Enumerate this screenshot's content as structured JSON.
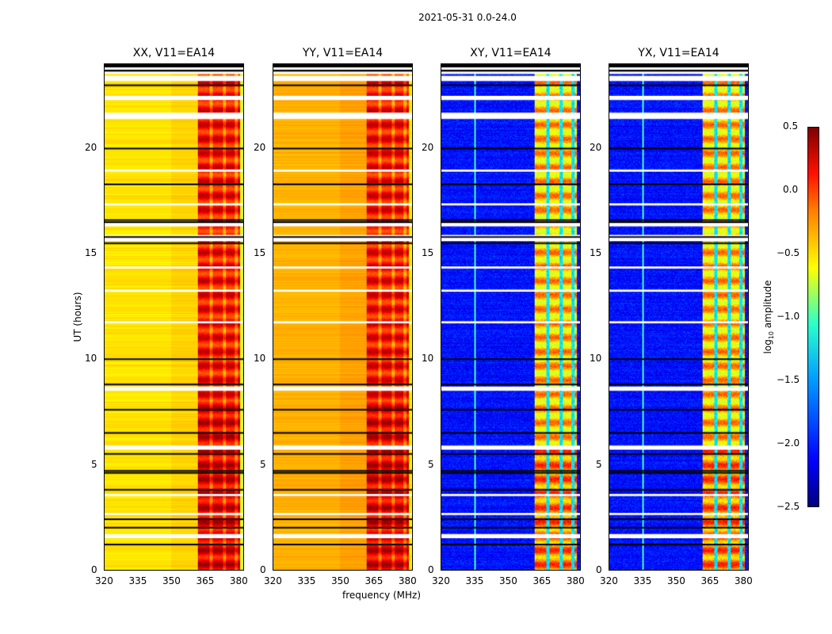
{
  "chart_data": {
    "type": "heatmap",
    "title": "2021-05-31 0.0-24.0",
    "xlabel": "frequency (MHz)",
    "ylabel": "UT (hours)",
    "xlim": [
      320,
      382.5
    ],
    "ylim": [
      0,
      24
    ],
    "xticks": [
      "320",
      "335",
      "350",
      "365",
      "380"
    ],
    "yticks": [
      "0",
      "5",
      "10",
      "15",
      "20"
    ],
    "panels": [
      {
        "title": "XX, V11=EA14",
        "kind": "parallel"
      },
      {
        "title": "YY, V11=EA14",
        "kind": "parallel"
      },
      {
        "title": "XY, V11=EA14",
        "kind": "cross"
      },
      {
        "title": "YX, V11=EA14",
        "kind": "cross"
      }
    ],
    "parallel_base_log_amp": -0.6,
    "parallel_band_log_amp": 0.1,
    "cross_base_log_amp": -2.3,
    "cross_band_log_amp": -0.5,
    "band_mhz": [
      362,
      381
    ],
    "band_gaps_mhz": [
      368,
      374,
      379
    ],
    "flagged_hours": [
      [
        23.2,
        23.45
      ],
      [
        22.3,
        22.5
      ],
      [
        21.4,
        21.7
      ],
      [
        18.9,
        19.0
      ],
      [
        17.3,
        17.4
      ],
      [
        16.3,
        16.5
      ],
      [
        15.6,
        15.9
      ],
      [
        14.3,
        14.4
      ],
      [
        13.2,
        13.3
      ],
      [
        11.7,
        11.8
      ],
      [
        8.5,
        8.7
      ],
      [
        5.7,
        5.9
      ],
      [
        3.5,
        3.6
      ],
      [
        2.6,
        2.7
      ],
      [
        1.5,
        1.7
      ]
    ],
    "black_line_hours": [
      24.0,
      23.8,
      23.6,
      23.0,
      20.0,
      18.3,
      16.6,
      16.5,
      15.8,
      15.5,
      10.0,
      8.8,
      7.6,
      6.5,
      5.5,
      4.7,
      4.6,
      3.8,
      2.4,
      2.0,
      1.2
    ],
    "colorbar": {
      "label": "log10 amplitude",
      "label_main": "log",
      "label_sub": "10",
      "label_rest": " amplitude",
      "ticks": [
        "0.5",
        "0.0",
        "−0.5",
        "−1.0",
        "−1.5",
        "−2.0",
        "−2.5"
      ],
      "range": [
        -2.5,
        0.5
      ]
    }
  }
}
